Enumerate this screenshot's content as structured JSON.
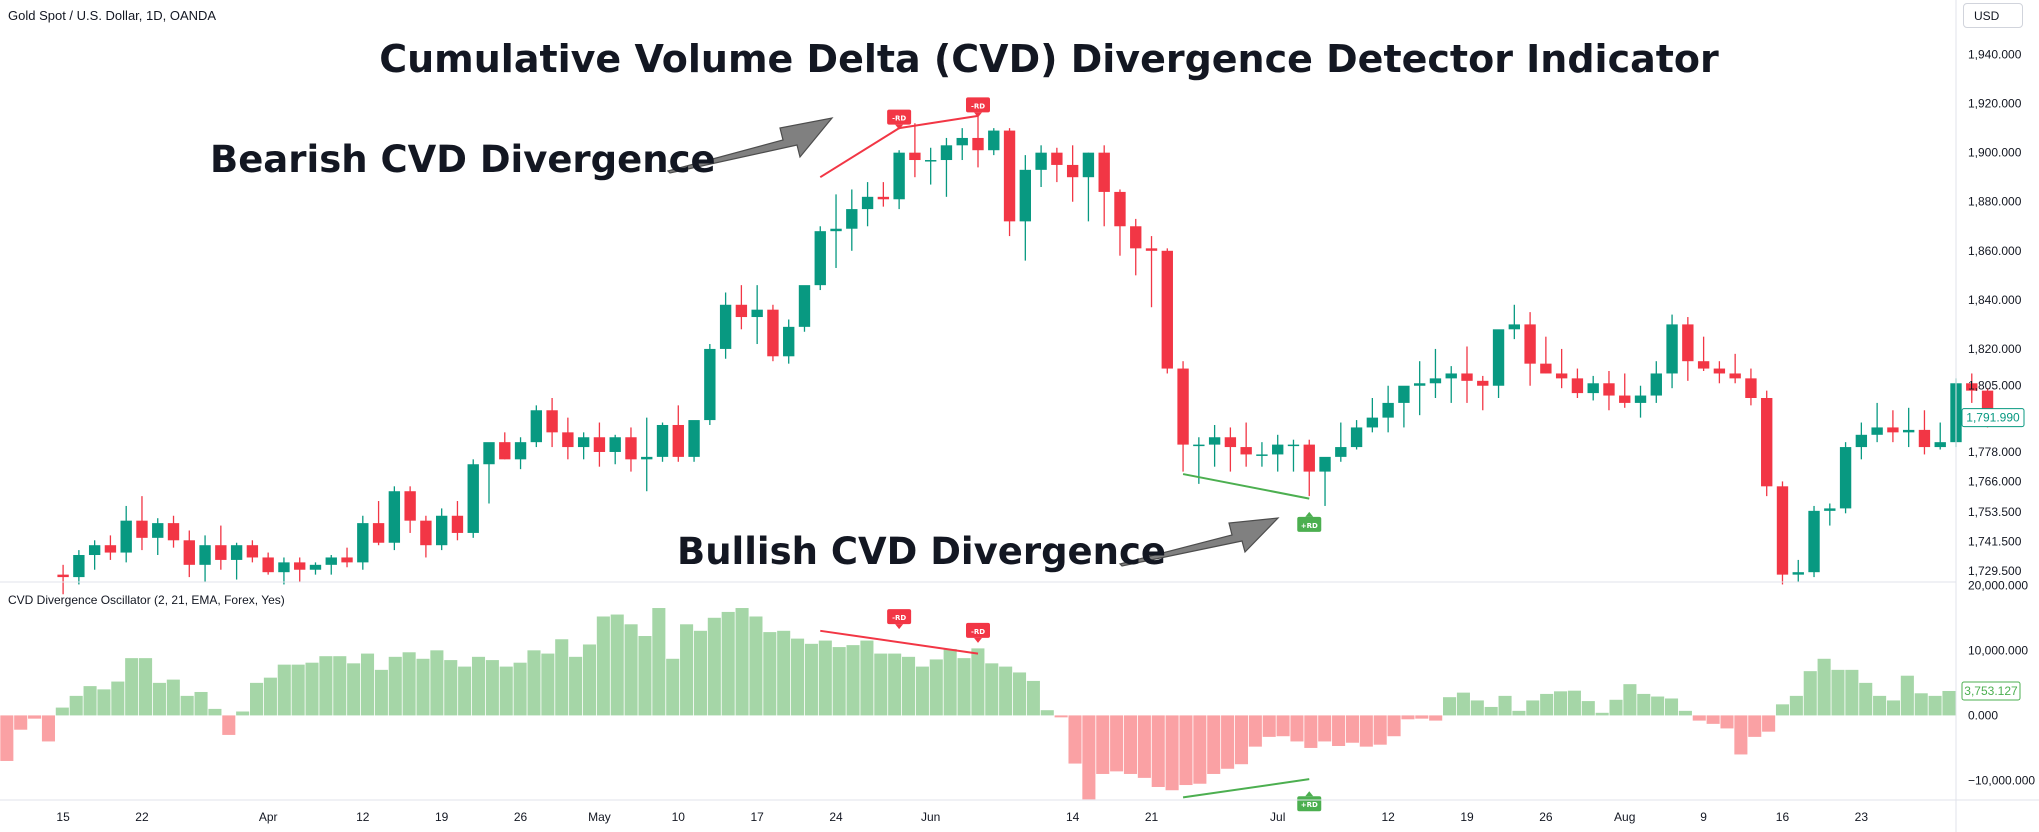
{
  "header": {
    "symbol": "Gold Spot / U.S. Dollar, 1D, OANDA",
    "currency_button": "USD"
  },
  "colors": {
    "up": "#089981",
    "down": "#f23645",
    "hist_pos": "#a5d6a7",
    "hist_neg": "#faa1a4",
    "bull_label": "#4caf50",
    "bear_label": "#f23645",
    "arrow": "#808080"
  },
  "chart_data": [
    {
      "type": "candlestick",
      "title": "Cumulative Volume Delta (CVD) Divergence Detector Indicator",
      "ylabel": "",
      "ylim": [
        1725,
        1950
      ],
      "yticks": [
        1729.5,
        1741.5,
        1753.5,
        1766,
        1778,
        1791.99,
        1805,
        1820,
        1840,
        1860,
        1880,
        1900,
        1920,
        1940
      ],
      "ytick_labels": [
        "1,729.500",
        "1,741.500",
        "1,753.500",
        "1,766.000",
        "1,778.000",
        "1,791.990",
        "1,805.000",
        "1,820.000",
        "1,840.000",
        "1,860.000",
        "1,880.000",
        "1,900.000",
        "1,920.000",
        "1,940.000"
      ],
      "last_price": "1,791.990",
      "x_index_range": [
        -4,
        120
      ],
      "ohlc": [
        [
          1728,
          1732,
          1720,
          1727
        ],
        [
          1727,
          1738,
          1724,
          1736
        ],
        [
          1736,
          1742,
          1730,
          1740
        ],
        [
          1740,
          1744,
          1734,
          1737
        ],
        [
          1737,
          1756,
          1733,
          1750
        ],
        [
          1750,
          1760,
          1738,
          1743
        ],
        [
          1743,
          1751,
          1736,
          1749
        ],
        [
          1749,
          1752,
          1739,
          1742
        ],
        [
          1742,
          1746,
          1727,
          1732
        ],
        [
          1732,
          1744,
          1725,
          1740
        ],
        [
          1740,
          1748,
          1730,
          1734
        ],
        [
          1734,
          1741,
          1726,
          1740
        ],
        [
          1740,
          1742,
          1733,
          1735
        ],
        [
          1735,
          1737,
          1728,
          1729
        ],
        [
          1729,
          1735,
          1724,
          1733
        ],
        [
          1733,
          1735,
          1725,
          1730
        ],
        [
          1730,
          1733,
          1728,
          1732
        ],
        [
          1732,
          1736,
          1728,
          1735
        ],
        [
          1735,
          1739,
          1731,
          1733
        ],
        [
          1733,
          1752,
          1730,
          1749
        ],
        [
          1749,
          1758,
          1740,
          1741
        ],
        [
          1741,
          1764,
          1738,
          1762
        ],
        [
          1762,
          1764,
          1745,
          1750
        ],
        [
          1750,
          1752,
          1735,
          1740
        ],
        [
          1740,
          1755,
          1738,
          1752
        ],
        [
          1752,
          1758,
          1742,
          1745
        ],
        [
          1745,
          1775,
          1743,
          1773
        ],
        [
          1773,
          1781,
          1757,
          1782
        ],
        [
          1782,
          1786,
          1775,
          1775
        ],
        [
          1775,
          1784,
          1771,
          1782
        ],
        [
          1782,
          1797,
          1780,
          1795
        ],
        [
          1795,
          1800,
          1780,
          1786
        ],
        [
          1786,
          1792,
          1775,
          1780
        ],
        [
          1780,
          1786,
          1775,
          1784
        ],
        [
          1784,
          1790,
          1772,
          1778
        ],
        [
          1778,
          1785,
          1773,
          1784
        ],
        [
          1784,
          1788,
          1770,
          1775
        ],
        [
          1775,
          1792,
          1762,
          1776
        ],
        [
          1776,
          1790,
          1774,
          1789
        ],
        [
          1789,
          1797,
          1774,
          1776
        ],
        [
          1776,
          1790,
          1774,
          1791
        ],
        [
          1791,
          1822,
          1789,
          1820
        ],
        [
          1820,
          1843,
          1816,
          1838
        ],
        [
          1838,
          1846,
          1828,
          1833
        ],
        [
          1833,
          1846,
          1822,
          1836
        ],
        [
          1836,
          1838,
          1815,
          1817
        ],
        [
          1817,
          1832,
          1814,
          1829
        ],
        [
          1829,
          1845,
          1827,
          1846
        ],
        [
          1846,
          1870,
          1844,
          1868
        ],
        [
          1868,
          1883,
          1853,
          1869
        ],
        [
          1869,
          1885,
          1860,
          1877
        ],
        [
          1877,
          1888,
          1870,
          1882
        ],
        [
          1882,
          1888,
          1878,
          1881
        ],
        [
          1881,
          1901,
          1877,
          1900
        ],
        [
          1900,
          1912,
          1890,
          1897
        ],
        [
          1897,
          1902,
          1887,
          1897
        ],
        [
          1897,
          1906,
          1882,
          1903
        ],
        [
          1903,
          1910,
          1897,
          1906
        ],
        [
          1906,
          1916,
          1894,
          1901
        ],
        [
          1901,
          1910,
          1899,
          1909
        ],
        [
          1909,
          1910,
          1866,
          1872
        ],
        [
          1872,
          1899,
          1856,
          1893
        ],
        [
          1893,
          1903,
          1886,
          1900
        ],
        [
          1900,
          1902,
          1888,
          1895
        ],
        [
          1895,
          1903,
          1880,
          1890
        ],
        [
          1890,
          1900,
          1872,
          1900
        ],
        [
          1900,
          1903,
          1870,
          1884
        ],
        [
          1884,
          1885,
          1858,
          1870
        ],
        [
          1870,
          1873,
          1850,
          1861
        ],
        [
          1861,
          1866,
          1837,
          1860
        ],
        [
          1860,
          1861,
          1810,
          1812
        ],
        [
          1812,
          1815,
          1770,
          1781
        ],
        [
          1781,
          1784,
          1765,
          1781
        ],
        [
          1781,
          1789,
          1772,
          1784
        ],
        [
          1784,
          1788,
          1770,
          1780
        ],
        [
          1780,
          1790,
          1772,
          1777
        ],
        [
          1777,
          1782,
          1772,
          1777
        ],
        [
          1777,
          1785,
          1770,
          1781
        ],
        [
          1781,
          1783,
          1770,
          1781
        ],
        [
          1781,
          1783,
          1760,
          1770
        ],
        [
          1770,
          1775,
          1756,
          1776
        ],
        [
          1776,
          1790,
          1774,
          1780
        ],
        [
          1780,
          1791,
          1779,
          1788
        ],
        [
          1788,
          1800,
          1786,
          1792
        ],
        [
          1792,
          1805,
          1786,
          1798
        ],
        [
          1798,
          1803,
          1788,
          1805
        ],
        [
          1805,
          1815,
          1793,
          1806
        ],
        [
          1806,
          1820,
          1800,
          1808
        ],
        [
          1808,
          1813,
          1798,
          1810
        ],
        [
          1810,
          1821,
          1798,
          1807
        ],
        [
          1807,
          1809,
          1795,
          1805
        ],
        [
          1805,
          1827,
          1800,
          1828
        ],
        [
          1828,
          1838,
          1824,
          1830
        ],
        [
          1830,
          1835,
          1805,
          1814
        ],
        [
          1814,
          1825,
          1810,
          1810
        ],
        [
          1810,
          1820,
          1804,
          1808
        ],
        [
          1808,
          1812,
          1800,
          1802
        ],
        [
          1802,
          1809,
          1799,
          1806
        ],
        [
          1806,
          1811,
          1795,
          1801
        ],
        [
          1801,
          1810,
          1796,
          1798
        ],
        [
          1798,
          1805,
          1792,
          1801
        ],
        [
          1801,
          1815,
          1798,
          1810
        ],
        [
          1810,
          1834,
          1804,
          1830
        ],
        [
          1830,
          1833,
          1807,
          1815
        ],
        [
          1815,
          1825,
          1811,
          1812
        ],
        [
          1812,
          1815,
          1806,
          1810
        ],
        [
          1810,
          1818,
          1806,
          1808
        ],
        [
          1808,
          1812,
          1797,
          1800
        ],
        [
          1800,
          1803,
          1760,
          1764
        ],
        [
          1764,
          1766,
          1724,
          1728
        ],
        [
          1728,
          1734,
          1725,
          1729
        ],
        [
          1729,
          1756,
          1727,
          1754
        ],
        [
          1754,
          1757,
          1748,
          1755
        ],
        [
          1755,
          1782,
          1753,
          1780
        ],
        [
          1780,
          1790,
          1775,
          1785
        ],
        [
          1785,
          1798,
          1782,
          1788
        ],
        [
          1788,
          1795,
          1782,
          1786
        ],
        [
          1786,
          1796,
          1780,
          1787
        ],
        [
          1787,
          1795,
          1777,
          1780
        ],
        [
          1780,
          1790,
          1779,
          1782
        ],
        [
          1782,
          1808,
          1780,
          1806
        ],
        [
          1806,
          1810,
          1798,
          1803
        ],
        [
          1803,
          1804,
          1788,
          1792
        ],
        [
          1792,
          1795,
          1789,
          1792
        ]
      ],
      "annotations": [
        {
          "text": "Bearish CVD Divergence"
        },
        {
          "text": "Bullish CVD Divergence"
        }
      ],
      "signals": [
        {
          "label": "-RD",
          "kind": "bear",
          "x": 53,
          "y": 1909
        },
        {
          "label": "-RD",
          "kind": "bear",
          "x": 58,
          "y": 1914
        },
        {
          "label": "+RD",
          "kind": "bull",
          "x": 79,
          "y": 1754
        }
      ],
      "divergence_lines": [
        {
          "kind": "bear",
          "x1": 48,
          "y1": 1890,
          "x2": 53,
          "y2": 1910
        },
        {
          "kind": "bear",
          "x1": 53,
          "y1": 1910,
          "x2": 58,
          "y2": 1915
        },
        {
          "kind": "bull",
          "x1": 71,
          "y1": 1769,
          "x2": 79,
          "y2": 1759
        }
      ]
    },
    {
      "type": "bar",
      "title": "CVD Divergence Oscillator (2, 21, EMA, Forex, Yes)",
      "ylim": [
        -13000,
        20500
      ],
      "yticks": [
        20000,
        10000,
        0,
        -10000
      ],
      "ytick_labels": [
        "20,000.000",
        "10,000.000",
        "0.000",
        "−10,000.000"
      ],
      "last_value": "3,753.127",
      "values": [
        -7000,
        -2200,
        -500,
        -4000,
        1200,
        3000,
        4500,
        4000,
        5200,
        8800,
        8800,
        5000,
        5500,
        3000,
        3600,
        1000,
        -3000,
        600,
        5000,
        5800,
        7800,
        7800,
        8100,
        9100,
        9100,
        8000,
        9500,
        7000,
        9000,
        9700,
        8700,
        10000,
        8500,
        7500,
        9000,
        8500,
        7500,
        8100,
        10000,
        9500,
        11700,
        9000,
        10900,
        15200,
        15500,
        14000,
        12200,
        16500,
        8700,
        14000,
        13000,
        15000,
        15900,
        16500,
        15200,
        12800,
        13000,
        11800,
        11000,
        11500,
        10500,
        10800,
        11500,
        9500,
        9500,
        9000,
        7500,
        8600,
        10200,
        8800,
        10300,
        8000,
        7500,
        6600,
        5300,
        800,
        -300,
        -7400,
        -12900,
        -9000,
        -8600,
        -9000,
        -9600,
        -11000,
        -11500,
        -10700,
        -10500,
        -9000,
        -8200,
        -7500,
        -4800,
        -3300,
        -3200,
        -4000,
        -5000,
        -4000,
        -4700,
        -4200,
        -4800,
        -4500,
        -3200,
        -600,
        -500,
        -800,
        2800,
        3500,
        2300,
        1300,
        3000,
        700,
        2300,
        3300,
        3700,
        3800,
        2200,
        400,
        2400,
        4800,
        3300,
        2900,
        2600,
        700,
        -800,
        -1300,
        -2000,
        -6000,
        -3300,
        -2500,
        1700,
        3000,
        6800,
        8700,
        7000,
        7000,
        5000,
        3000,
        2300,
        6100,
        3400,
        3000,
        3753
      ],
      "signals": [
        {
          "label": "-RD",
          "kind": "bear",
          "x": 53,
          "y": 13100
        },
        {
          "label": "-RD",
          "kind": "bear",
          "x": 58,
          "y": 11000
        },
        {
          "label": "+RD",
          "kind": "bull",
          "x": 79,
          "y": -11500
        }
      ],
      "divergence_lines": [
        {
          "kind": "bear",
          "x1": 48,
          "y1": 13000,
          "x2": 58,
          "y2": 9500
        },
        {
          "kind": "bull",
          "x1": 71,
          "y1": -12600,
          "x2": 79,
          "y2": -9800
        }
      ]
    }
  ],
  "x_axis": {
    "ticks": [
      {
        "label": "15",
        "x": 0
      },
      {
        "label": "22",
        "x": 5
      },
      {
        "label": "Apr",
        "x": 13
      },
      {
        "label": "12",
        "x": 19
      },
      {
        "label": "19",
        "x": 24
      },
      {
        "label": "26",
        "x": 29
      },
      {
        "label": "May",
        "x": 34
      },
      {
        "label": "10",
        "x": 39
      },
      {
        "label": "17",
        "x": 44
      },
      {
        "label": "24",
        "x": 49
      },
      {
        "label": "Jun",
        "x": 55
      },
      {
        "label": "14",
        "x": 64
      },
      {
        "label": "21",
        "x": 69
      },
      {
        "label": "Jul",
        "x": 77
      },
      {
        "label": "12",
        "x": 84
      },
      {
        "label": "19",
        "x": 89
      },
      {
        "label": "26",
        "x": 94
      },
      {
        "label": "Aug",
        "x": 99
      },
      {
        "label": "9",
        "x": 104
      },
      {
        "label": "16",
        "x": 109
      },
      {
        "label": "23",
        "x": 114
      }
    ]
  }
}
